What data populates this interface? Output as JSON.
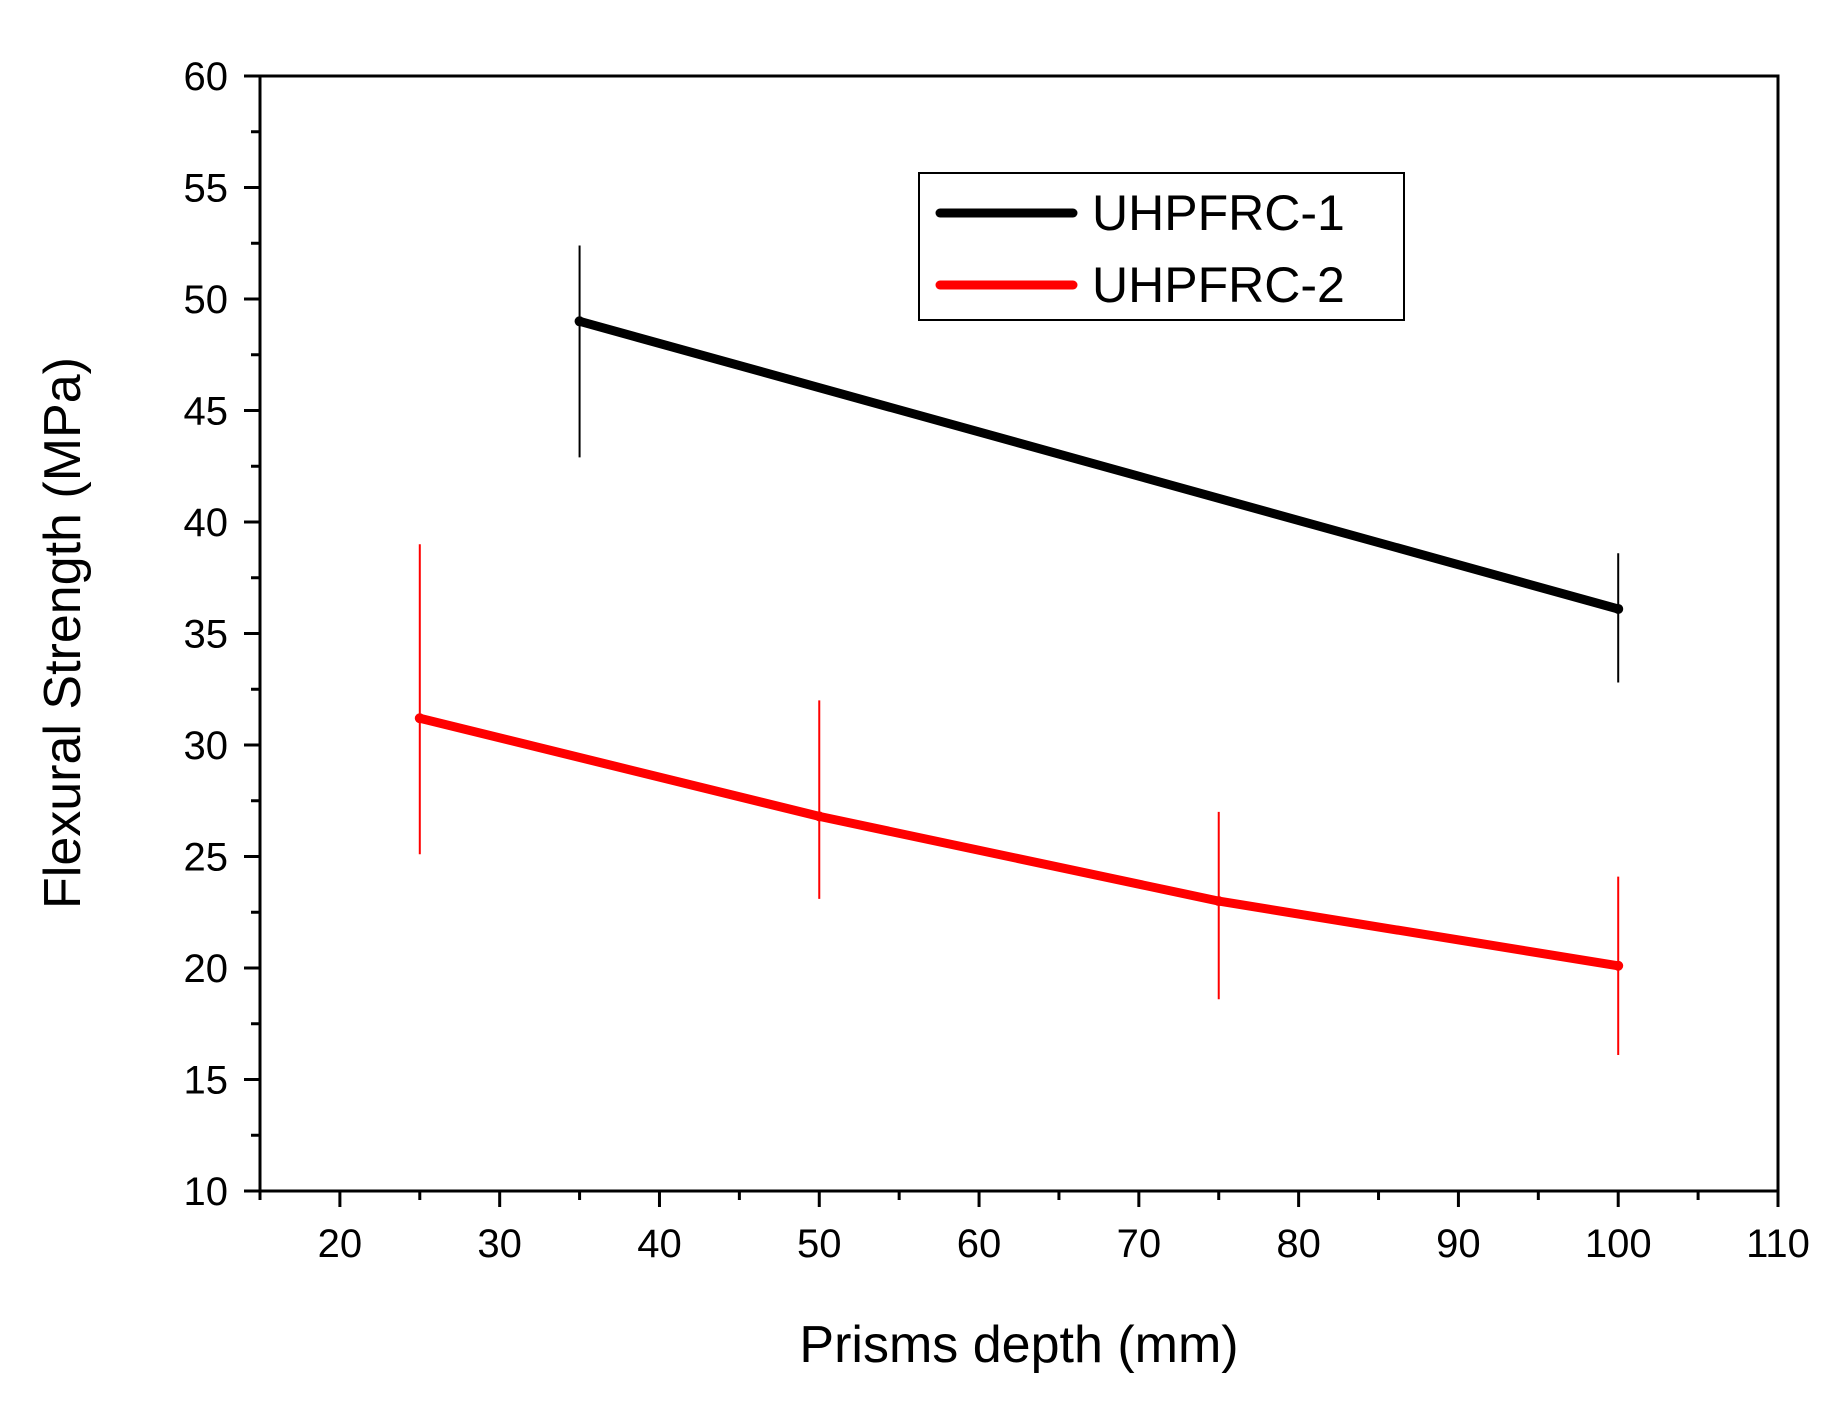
{
  "chart_data": {
    "type": "line",
    "title": "",
    "xlabel": "Prisms depth (mm)",
    "ylabel": "Flexural Strength (MPa)",
    "xlim": [
      15,
      110
    ],
    "ylim": [
      10,
      60
    ],
    "xticks": [
      20,
      30,
      40,
      50,
      60,
      70,
      80,
      90,
      100,
      110
    ],
    "yticks": [
      10,
      15,
      20,
      25,
      30,
      35,
      40,
      45,
      50,
      55,
      60
    ],
    "grid": false,
    "legend_position": "top-right",
    "series": [
      {
        "name": "UHPFRC-1",
        "color": "#000000",
        "x": [
          35,
          100
        ],
        "y": [
          49,
          36.1
        ],
        "error": [
          [
            6.1,
            3.3
          ],
          [
            3.4,
            2.5
          ]
        ]
      },
      {
        "name": "UHPFRC-2",
        "color": "#ff0000",
        "x": [
          25,
          50,
          75,
          100
        ],
        "y": [
          31.2,
          26.8,
          23,
          20.1
        ],
        "error": [
          [
            6.1,
            3.7,
            4.4,
            4.0
          ],
          [
            7.8,
            5.2,
            4.0,
            4.0
          ]
        ]
      }
    ]
  }
}
